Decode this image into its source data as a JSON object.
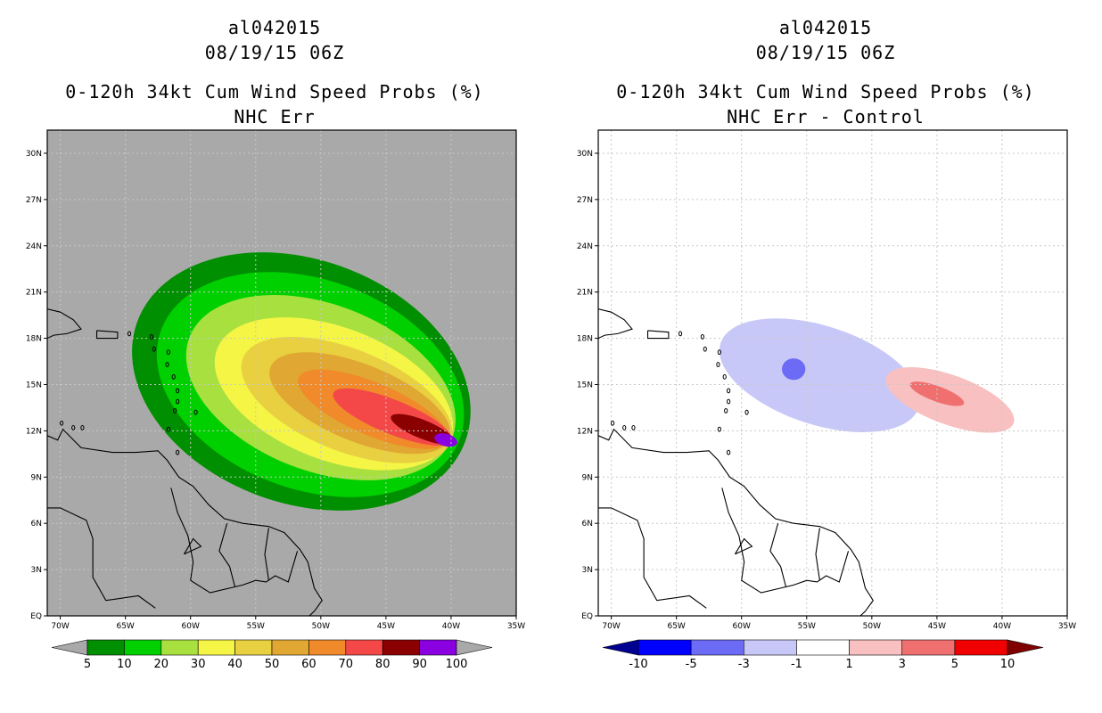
{
  "panels": [
    {
      "storm_id": "al042015",
      "datetime": "08/19/15 06Z",
      "title_line1": "0-120h 34kt Cum Wind Speed Probs (%)",
      "title_line2": "NHC Err"
    },
    {
      "storm_id": "al042015",
      "datetime": "08/19/15 06Z",
      "title_line1": "0-120h 34kt Cum Wind Speed Probs (%)",
      "title_line2": "NHC Err - Control"
    }
  ],
  "chart_data": [
    {
      "type": "heatmap",
      "title": "0-120h 34kt Cum Wind Speed Probs (%) — NHC Err",
      "x_ticks": [
        "70W",
        "65W",
        "60W",
        "55W",
        "50W",
        "45W",
        "40W",
        "35W"
      ],
      "y_ticks": [
        "EQ",
        "3N",
        "6N",
        "9N",
        "12N",
        "15N",
        "18N",
        "21N",
        "24N",
        "27N",
        "30N"
      ],
      "xlim": [
        -71,
        -35
      ],
      "ylim": [
        0,
        31.5
      ],
      "grid": true,
      "background_color": "#a9a9a9",
      "colorbar": {
        "labels": [
          "5",
          "10",
          "20",
          "30",
          "40",
          "50",
          "60",
          "70",
          "80",
          "90",
          "100"
        ],
        "colors": [
          "#008f00",
          "#00d000",
          "#a8e040",
          "#f5f545",
          "#e8d040",
          "#e0a832",
          "#f08a2a",
          "#f44848",
          "#8b0000",
          "#8a00e0"
        ],
        "end_colors": [
          "#a9a9a9",
          "#a9a9a9"
        ]
      },
      "contour_levels": [
        {
          "level": 5,
          "color": "#008f00",
          "center_lon": -51.5,
          "center_lat": 15.2,
          "rx_deg": 13.4,
          "ry_deg": 7.9,
          "rotation_deg": 20
        },
        {
          "level": 10,
          "color": "#00d000",
          "center_lon": -50.8,
          "center_lat": 15.0,
          "rx_deg": 12.2,
          "ry_deg": 6.8,
          "rotation_deg": 20
        },
        {
          "level": 20,
          "color": "#a8e040",
          "center_lon": -50.0,
          "center_lat": 14.8,
          "rx_deg": 10.8,
          "ry_deg": 5.4,
          "rotation_deg": 21
        },
        {
          "level": 30,
          "color": "#f5f545",
          "center_lon": -49.0,
          "center_lat": 14.4,
          "rx_deg": 9.6,
          "ry_deg": 4.3,
          "rotation_deg": 21
        },
        {
          "level": 40,
          "color": "#e8d040",
          "center_lon": -48.0,
          "center_lat": 14.0,
          "rx_deg": 8.6,
          "ry_deg": 3.3,
          "rotation_deg": 22
        },
        {
          "level": 50,
          "color": "#e0a832",
          "center_lon": -47.0,
          "center_lat": 13.8,
          "rx_deg": 7.4,
          "ry_deg": 2.5,
          "rotation_deg": 22
        },
        {
          "level": 60,
          "color": "#f08a2a",
          "center_lon": -46.0,
          "center_lat": 13.4,
          "rx_deg": 6.2,
          "ry_deg": 1.7,
          "rotation_deg": 23
        },
        {
          "level": 70,
          "color": "#f44848",
          "center_lon": -44.5,
          "center_lat": 12.9,
          "rx_deg": 4.9,
          "ry_deg": 1.1,
          "rotation_deg": 22
        },
        {
          "level": 80,
          "color": "#8b0000",
          "center_lon": -42.2,
          "center_lat": 12.1,
          "rx_deg": 2.6,
          "ry_deg": 0.6,
          "rotation_deg": 22
        },
        {
          "level": 90,
          "color": "#8a00e0",
          "center_lon": -40.4,
          "center_lat": 11.4,
          "rx_deg": 0.9,
          "ry_deg": 0.4,
          "rotation_deg": 15
        }
      ]
    },
    {
      "type": "heatmap",
      "title": "0-120h 34kt Cum Wind Speed Probs (%) — NHC Err - Control",
      "x_ticks": [
        "70W",
        "65W",
        "60W",
        "55W",
        "50W",
        "45W",
        "40W",
        "35W"
      ],
      "y_ticks": [
        "EQ",
        "3N",
        "6N",
        "9N",
        "12N",
        "15N",
        "18N",
        "21N",
        "24N",
        "27N",
        "30N"
      ],
      "xlim": [
        -71,
        -35
      ],
      "ylim": [
        0,
        31.5
      ],
      "grid": true,
      "background_color": "#ffffff",
      "colorbar": {
        "labels": [
          "-10",
          "-5",
          "-3",
          "-1",
          "1",
          "3",
          "5",
          "10"
        ],
        "colors": [
          "#0000ff",
          "#6b6bf5",
          "#c8c8f8",
          "#ffffff",
          "#f8c0c0",
          "#f07070",
          "#f00000"
        ],
        "end_colors": [
          "#000090",
          "#800000"
        ]
      },
      "difference_regions": [
        {
          "level": "-1 to -3",
          "color": "#c8c8f8",
          "center_lon": -54.0,
          "center_lat": 15.6,
          "rx_deg": 8.0,
          "ry_deg": 3.2,
          "rotation_deg": 18
        },
        {
          "level": "-3 to -5",
          "color": "#6b6bf5",
          "center_lon": -56.0,
          "center_lat": 16.0,
          "rx_deg": 0.9,
          "ry_deg": 0.7,
          "rotation_deg": 0
        },
        {
          "level": "1 to 3",
          "color": "#f8c0c0",
          "center_lon": -44.0,
          "center_lat": 14.0,
          "rx_deg": 5.2,
          "ry_deg": 1.6,
          "rotation_deg": 20
        },
        {
          "level": "3 to 5",
          "color": "#f07070",
          "center_lon": -45.0,
          "center_lat": 14.4,
          "rx_deg": 2.2,
          "ry_deg": 0.5,
          "rotation_deg": 20
        }
      ]
    }
  ]
}
